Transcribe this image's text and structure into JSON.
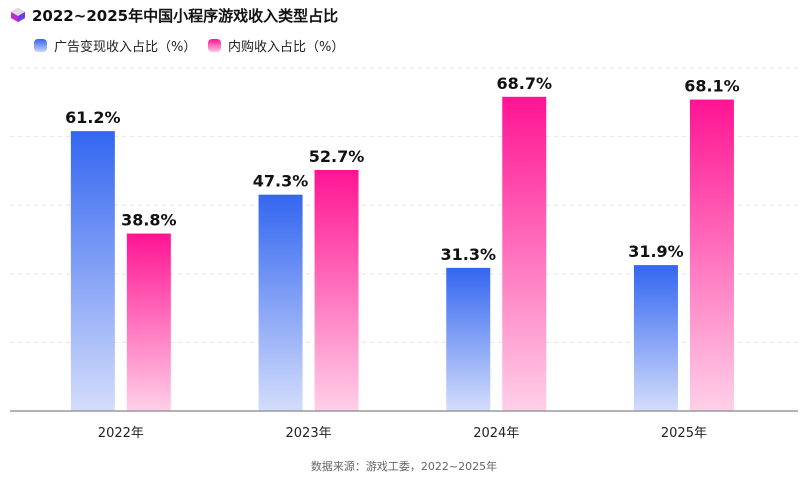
{
  "chart_data": {
    "type": "bar",
    "title": "2022~2025年中国小程序游戏收入类型占比",
    "categories": [
      "2022年",
      "2023年",
      "2024年",
      "2025年"
    ],
    "series": [
      {
        "name": "广告变现收入占比（%）",
        "values": [
          61.2,
          47.3,
          31.3,
          31.9
        ],
        "labels": [
          "61.2%",
          "47.3%",
          "31.3%",
          "31.9%"
        ],
        "color": "#3366f0"
      },
      {
        "name": "内购收入占比（%）",
        "values": [
          38.8,
          52.7,
          68.7,
          68.1
        ],
        "labels": [
          "38.8%",
          "52.7%",
          "68.7%",
          "68.1%"
        ],
        "color": "#ff1493"
      }
    ],
    "ylim": [
      0,
      75
    ],
    "grid": true,
    "legend": "top-left",
    "source": "数据来源：游戏工委，2022~2025年"
  }
}
